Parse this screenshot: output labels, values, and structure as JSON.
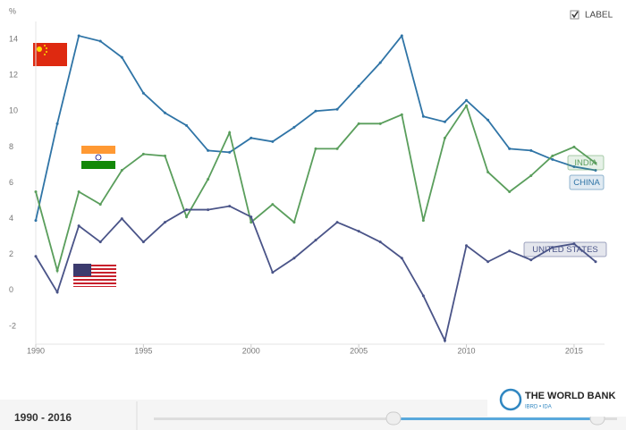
{
  "label_toggle": "LABEL",
  "range_label": "1990 - 2016",
  "brand": {
    "name": "THE WORLD BANK",
    "sub": "IBRD • IDA"
  },
  "chart_data": {
    "type": "line",
    "y_axis_label": "%",
    "x": [
      1990,
      1991,
      1992,
      1993,
      1994,
      1995,
      1996,
      1997,
      1998,
      1999,
      2000,
      2001,
      2002,
      2003,
      2004,
      2005,
      2006,
      2007,
      2008,
      2009,
      2010,
      2011,
      2012,
      2013,
      2014,
      2015,
      2016
    ],
    "series": [
      {
        "name": "CHINA",
        "color": "#2f74a6",
        "values": [
          3.9,
          9.3,
          14.2,
          13.9,
          13.0,
          11.0,
          9.9,
          9.2,
          7.8,
          7.7,
          8.5,
          8.3,
          9.1,
          10.0,
          10.1,
          11.4,
          12.7,
          14.2,
          9.7,
          9.4,
          10.6,
          9.5,
          7.9,
          7.8,
          7.3,
          6.9,
          6.7
        ]
      },
      {
        "name": "INDIA",
        "color": "#5a9e5c",
        "values": [
          5.5,
          1.1,
          5.5,
          4.8,
          6.7,
          7.6,
          7.5,
          4.1,
          6.2,
          8.8,
          3.8,
          4.8,
          3.8,
          7.9,
          7.9,
          9.3,
          9.3,
          9.8,
          3.9,
          8.5,
          10.3,
          6.6,
          5.5,
          6.4,
          7.5,
          8.0,
          7.1
        ]
      },
      {
        "name": "UNITED STATES",
        "color": "#4a5488",
        "values": [
          1.9,
          -0.1,
          3.6,
          2.7,
          4.0,
          2.7,
          3.8,
          4.5,
          4.5,
          4.7,
          4.1,
          1.0,
          1.8,
          2.8,
          3.8,
          3.3,
          2.7,
          1.8,
          -0.3,
          -2.8,
          2.5,
          1.6,
          2.2,
          1.7,
          2.4,
          2.6,
          1.6
        ]
      }
    ],
    "xlim": [
      1990,
      2016
    ],
    "ylim": [
      -3,
      15
    ],
    "xticks": [
      1990,
      1995,
      2000,
      2005,
      2010,
      2015
    ],
    "yticks": [
      -2,
      0,
      2,
      4,
      6,
      8,
      10,
      12,
      14
    ],
    "grid": false
  }
}
